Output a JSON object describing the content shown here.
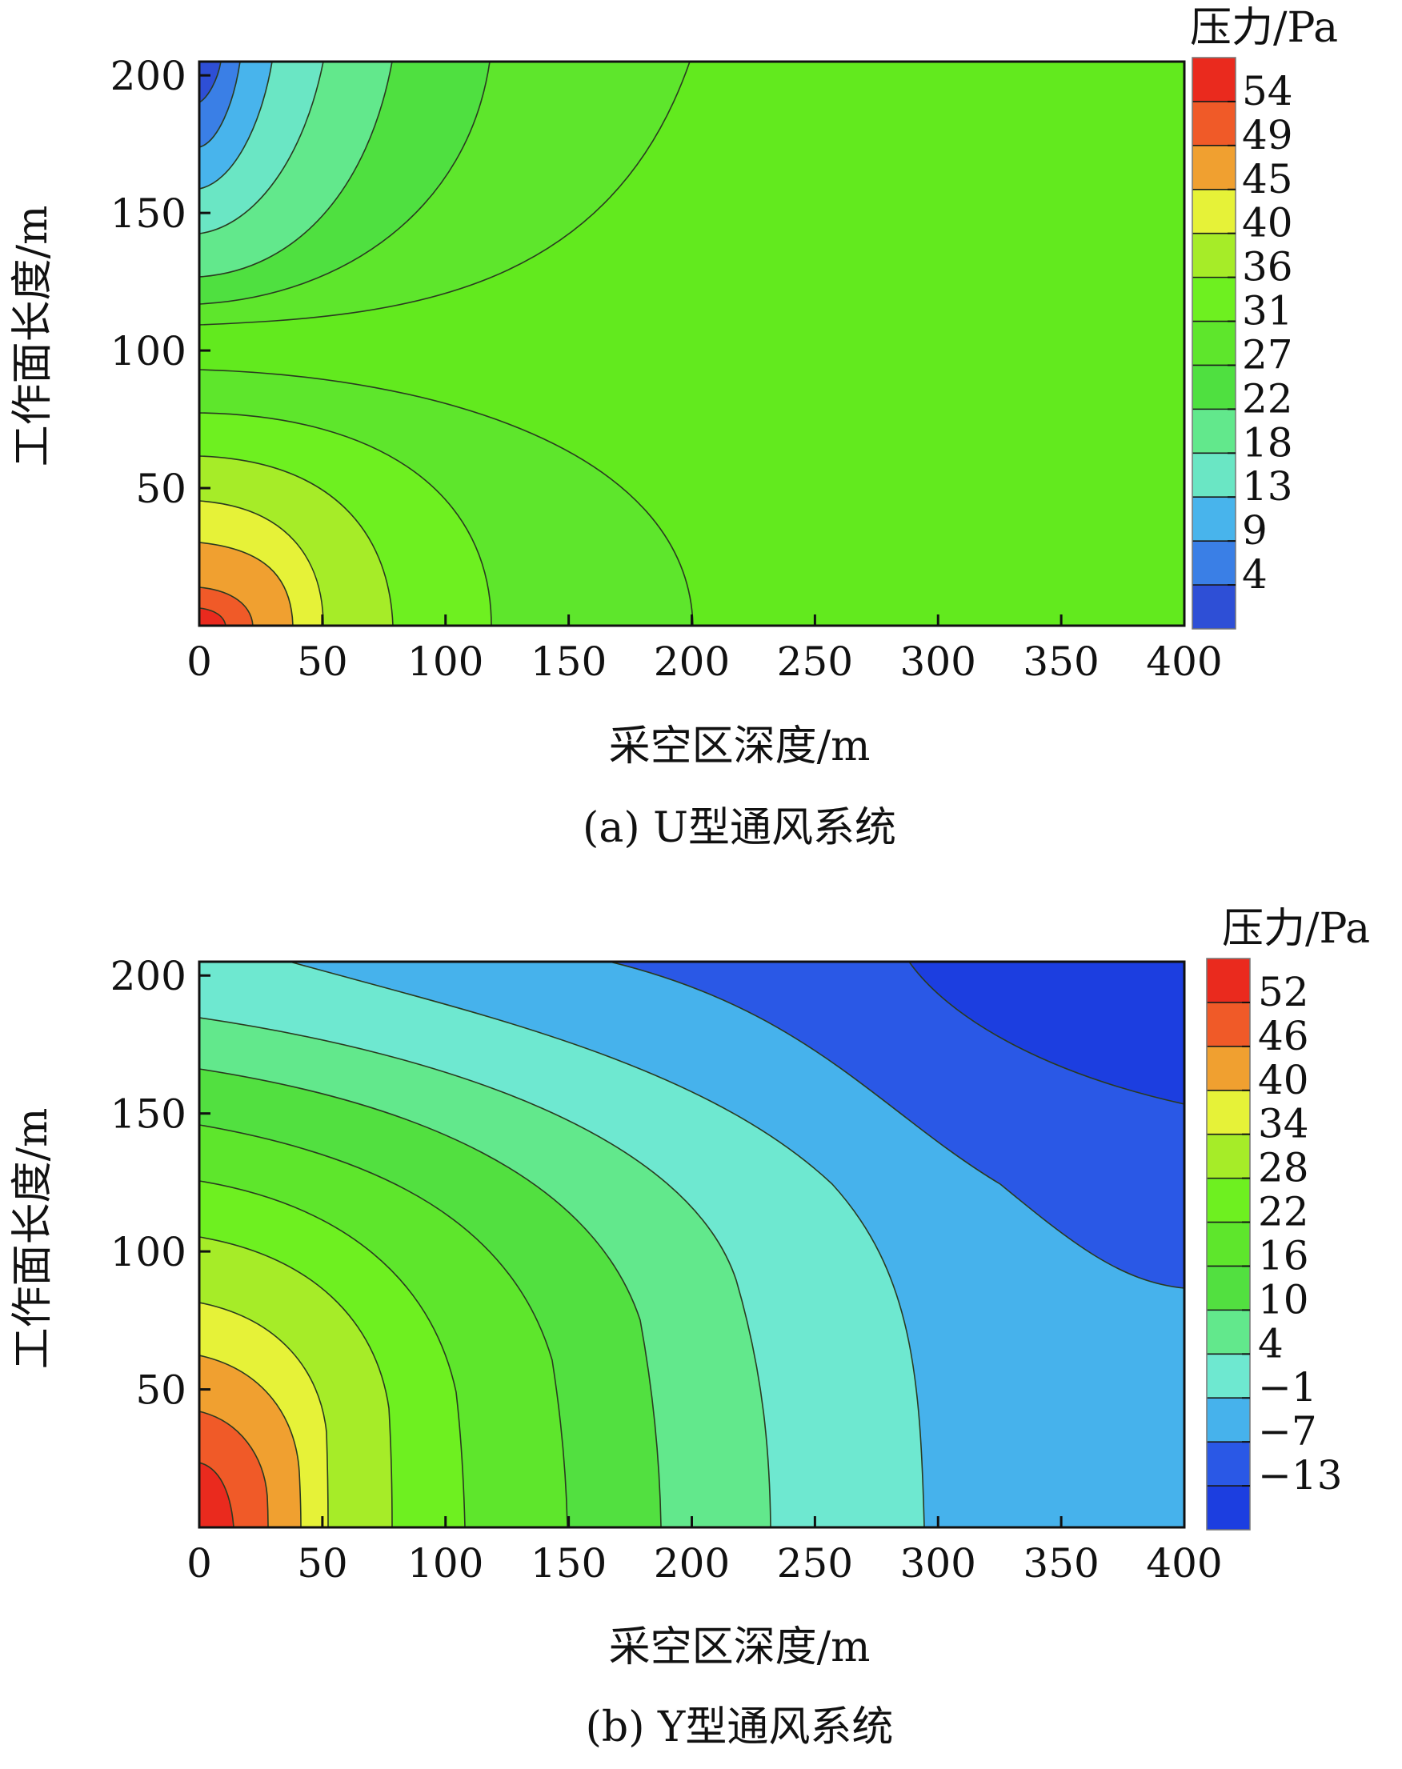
{
  "chart_data": [
    {
      "type": "heatmap",
      "subtype": "filled-contour",
      "caption": "(a) U型通风系统",
      "xlabel": "采空区深度/m",
      "ylabel": "工作面长度/m",
      "xlim": [
        0,
        400
      ],
      "ylim": [
        0,
        205
      ],
      "xticks": [
        "0",
        "50",
        "100",
        "150",
        "200",
        "250",
        "300",
        "350",
        "400"
      ],
      "yticks": [
        "50",
        "100",
        "150",
        "200"
      ],
      "colorbar": {
        "title": "压力/Pa",
        "labels": [
          "54",
          "49",
          "45",
          "40",
          "36",
          "31",
          "27",
          "22",
          "18",
          "13",
          "9",
          "4"
        ],
        "colors": [
          "#2e4fd6",
          "#3a7fe6",
          "#48b4ec",
          "#6ae6c4",
          "#62e88c",
          "#4fe040",
          "#5ee62c",
          "#6ef020",
          "#a6ec28",
          "#e6f238",
          "#f0a030",
          "#f05a28",
          "#ea2a1e"
        ]
      }
    },
    {
      "type": "heatmap",
      "subtype": "filled-contour",
      "caption": "(b) Y型通风系统",
      "xlabel": "采空区深度/m",
      "ylabel": "工作面长度/m",
      "xlim": [
        0,
        400
      ],
      "ylim": [
        0,
        205
      ],
      "xticks": [
        "0",
        "50",
        "100",
        "150",
        "200",
        "250",
        "300",
        "350",
        "400"
      ],
      "yticks": [
        "50",
        "100",
        "150",
        "200"
      ],
      "colorbar": {
        "title": "压力/Pa",
        "labels": [
          "52",
          "46",
          "40",
          "34",
          "28",
          "22",
          "16",
          "10",
          "4",
          "−1",
          "−7",
          "−13"
        ],
        "colors": [
          "#1c3ee0",
          "#2a58e6",
          "#46b2ec",
          "#6ee8d0",
          "#62e88c",
          "#52e040",
          "#5ee62c",
          "#6ef020",
          "#a6ec28",
          "#e6f238",
          "#f0a030",
          "#f05a28",
          "#ea2a1e"
        ]
      }
    }
  ]
}
